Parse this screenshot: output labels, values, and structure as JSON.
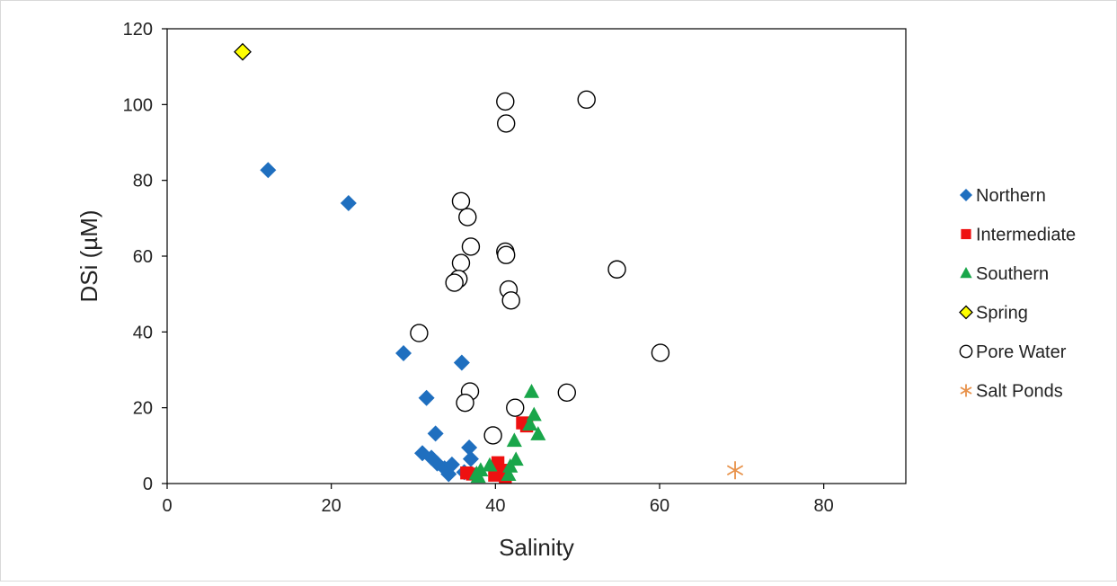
{
  "chart_data": {
    "type": "scatter",
    "title": "",
    "xlabel": "Salinity",
    "ylabel": "DSi (µM)",
    "xlim": [
      0,
      90
    ],
    "ylim": [
      0,
      120
    ],
    "x_ticks": [
      0,
      20,
      40,
      60,
      80
    ],
    "y_ticks": [
      0,
      20,
      40,
      60,
      80,
      100,
      120
    ],
    "grid": false,
    "legend_position": "right",
    "series": [
      {
        "name": "Northern",
        "marker": "diamond",
        "color": "#1f6fbf",
        "points": [
          [
            12.3,
            82.7
          ],
          [
            22.1,
            74.0
          ],
          [
            28.8,
            34.4
          ],
          [
            31.6,
            22.6
          ],
          [
            35.9,
            31.9
          ],
          [
            32.7,
            13.2
          ],
          [
            31.1,
            8.0
          ],
          [
            32.2,
            6.8
          ],
          [
            32.9,
            5.3
          ],
          [
            33.8,
            4.0
          ],
          [
            34.7,
            5.0
          ],
          [
            34.3,
            2.5
          ],
          [
            36.8,
            9.5
          ],
          [
            37.0,
            6.5
          ],
          [
            36.2,
            3.0
          ]
        ]
      },
      {
        "name": "Intermediate",
        "marker": "square",
        "color": "#ee1111",
        "points": [
          [
            36.5,
            2.8
          ],
          [
            37.2,
            2.5
          ],
          [
            40.3,
            5.5
          ],
          [
            40.8,
            3.5
          ],
          [
            41.2,
            1.8
          ],
          [
            39.9,
            2.2
          ],
          [
            43.3,
            16.0
          ],
          [
            43.8,
            15.2
          ]
        ]
      },
      {
        "name": "Southern",
        "marker": "triangle",
        "color": "#19a64a",
        "points": [
          [
            44.4,
            24.2
          ],
          [
            44.7,
            18.1
          ],
          [
            44.2,
            15.6
          ],
          [
            45.2,
            13.0
          ],
          [
            42.3,
            11.3
          ],
          [
            42.5,
            6.3
          ],
          [
            41.8,
            4.5
          ],
          [
            39.3,
            4.8
          ],
          [
            38.2,
            3.5
          ],
          [
            37.7,
            2.6
          ],
          [
            41.6,
            2.3
          ],
          [
            37.9,
            1.8
          ]
        ]
      },
      {
        "name": "Spring",
        "marker": "diamond",
        "color": "#ffff00",
        "points": [
          [
            9.2,
            113.9
          ]
        ]
      },
      {
        "name": "Pore Water",
        "marker": "circle",
        "color": "#ffffff",
        "points": [
          [
            41.2,
            100.8
          ],
          [
            51.1,
            101.3
          ],
          [
            41.3,
            95.0
          ],
          [
            35.8,
            74.5
          ],
          [
            36.6,
            70.3
          ],
          [
            37.0,
            62.5
          ],
          [
            41.2,
            61.2
          ],
          [
            41.3,
            60.3
          ],
          [
            54.8,
            56.5
          ],
          [
            35.8,
            58.2
          ],
          [
            35.5,
            54.0
          ],
          [
            35.0,
            53.0
          ],
          [
            41.6,
            51.2
          ],
          [
            41.9,
            48.3
          ],
          [
            30.7,
            39.7
          ],
          [
            60.1,
            34.5
          ],
          [
            36.9,
            24.3
          ],
          [
            48.7,
            24.0
          ],
          [
            36.3,
            21.3
          ],
          [
            42.4,
            20.0
          ],
          [
            39.7,
            12.7
          ]
        ]
      },
      {
        "name": "Salt Ponds",
        "marker": "asterisk",
        "color": "#e8924a",
        "points": [
          [
            69.2,
            3.5
          ]
        ]
      }
    ]
  }
}
